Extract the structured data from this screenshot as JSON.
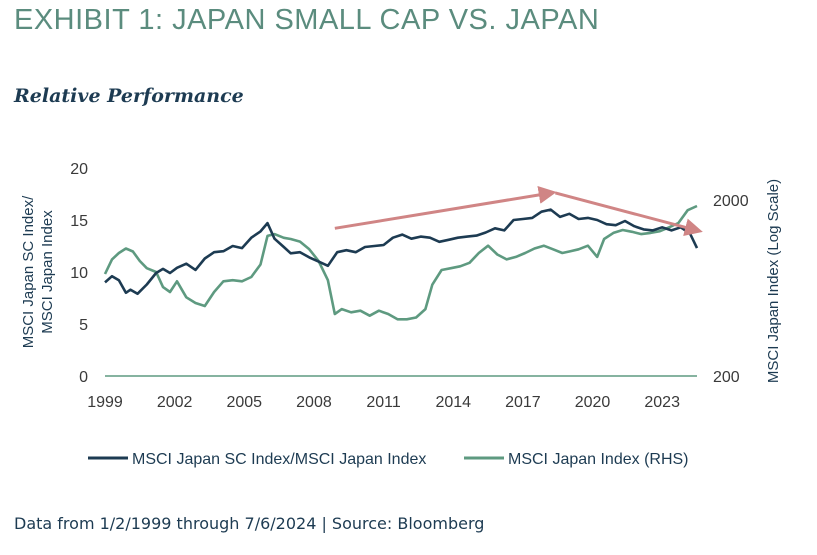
{
  "header": {
    "title": "EXHIBIT 1: JAPAN SMALL CAP VS. JAPAN",
    "subtitle": "Relative Performance"
  },
  "footer": {
    "note": "Data from 1/2/1999 through 7/6/2024 | Source: Bloomberg"
  },
  "colors": {
    "title": "#5b8c7e",
    "series_ratio": "#1d3b52",
    "series_index": "#5e9a80",
    "arrow": "#d08585",
    "axis": "#5e9a80"
  },
  "chart_data": {
    "type": "line",
    "ylabel_left": "MSCI Japan SC Index/ MSCI Japan Index",
    "ylabel_right": "MSCI Japan Index (Log Scale)",
    "ylim_left": [
      0,
      20
    ],
    "yticks_left": [
      "0",
      "5",
      "10",
      "15",
      "20"
    ],
    "yticks_right": [
      "200",
      "2000"
    ],
    "xlim": [
      1999,
      2024.5
    ],
    "xticks": [
      "1999",
      "2002",
      "2005",
      "2008",
      "2011",
      "2014",
      "2017",
      "2020",
      "2023"
    ],
    "legend_position": "bottom",
    "series": [
      {
        "name": "MSCI Japan SC Index/MSCI Japan Index",
        "axis": "left",
        "x": [
          1999,
          1999.3,
          1999.6,
          1999.9,
          2000.1,
          2000.4,
          2000.8,
          2001.2,
          2001.5,
          2001.8,
          2002.1,
          2002.5,
          2002.9,
          2003.3,
          2003.7,
          2004.1,
          2004.5,
          2004.9,
          2005.3,
          2005.7,
          2006.0,
          2006.3,
          2006.7,
          2007.0,
          2007.4,
          2007.8,
          2008.2,
          2008.6,
          2009.0,
          2009.4,
          2009.8,
          2010.2,
          2010.6,
          2011.0,
          2011.4,
          2011.8,
          2012.2,
          2012.6,
          2013.0,
          2013.4,
          2013.8,
          2014.2,
          2014.6,
          2015.0,
          2015.4,
          2015.8,
          2016.2,
          2016.6,
          2017.0,
          2017.4,
          2017.8,
          2018.2,
          2018.6,
          2019.0,
          2019.4,
          2019.8,
          2020.2,
          2020.6,
          2021.0,
          2021.4,
          2021.8,
          2022.2,
          2022.6,
          2023.0,
          2023.4,
          2023.8,
          2024.2,
          2024.5
        ],
        "y": [
          9.0,
          9.6,
          9.2,
          8.0,
          8.3,
          7.9,
          8.8,
          9.9,
          10.3,
          9.9,
          10.4,
          10.8,
          10.2,
          11.3,
          11.9,
          12.0,
          12.5,
          12.3,
          13.3,
          13.9,
          14.7,
          13.2,
          12.4,
          11.8,
          11.9,
          11.4,
          11.0,
          10.6,
          11.9,
          12.1,
          11.9,
          12.4,
          12.5,
          12.6,
          13.3,
          13.6,
          13.2,
          13.4,
          13.3,
          12.9,
          13.1,
          13.3,
          13.4,
          13.5,
          13.8,
          14.2,
          14.0,
          15.0,
          15.1,
          15.2,
          15.8,
          16.0,
          15.3,
          15.6,
          15.1,
          15.2,
          15.0,
          14.6,
          14.5,
          14.9,
          14.4,
          14.1,
          14.0,
          14.3,
          14.0,
          14.3,
          13.7,
          12.3
        ]
      },
      {
        "name": "MSCI Japan Index (RHS)",
        "axis": "right",
        "x": [
          1999,
          1999.3,
          1999.6,
          1999.9,
          2000.2,
          2000.5,
          2000.8,
          2001.2,
          2001.5,
          2001.8,
          2002.1,
          2002.5,
          2002.9,
          2003.3,
          2003.7,
          2004.1,
          2004.5,
          2004.9,
          2005.3,
          2005.7,
          2006.0,
          2006.3,
          2006.7,
          2007.0,
          2007.4,
          2007.8,
          2008.2,
          2008.6,
          2008.9,
          2009.2,
          2009.6,
          2010.0,
          2010.4,
          2010.8,
          2011.2,
          2011.6,
          2012.0,
          2012.4,
          2012.8,
          2013.1,
          2013.5,
          2013.9,
          2014.3,
          2014.7,
          2015.1,
          2015.5,
          2015.9,
          2016.3,
          2016.7,
          2017.1,
          2017.5,
          2017.9,
          2018.3,
          2018.7,
          2019.0,
          2019.4,
          2019.8,
          2020.2,
          2020.5,
          2020.9,
          2021.3,
          2021.7,
          2022.1,
          2022.5,
          2022.9,
          2023.3,
          2023.7,
          2024.1,
          2024.5
        ],
        "y": [
          760,
          920,
          1000,
          1060,
          1020,
          900,
          820,
          780,
          640,
          600,
          690,
          560,
          520,
          500,
          600,
          690,
          700,
          690,
          730,
          860,
          1250,
          1280,
          1220,
          1200,
          1160,
          1050,
          900,
          700,
          450,
          480,
          460,
          470,
          440,
          470,
          450,
          420,
          420,
          430,
          480,
          660,
          800,
          820,
          840,
          880,
          1000,
          1100,
          980,
          920,
          950,
          1000,
          1060,
          1100,
          1050,
          1000,
          1020,
          1050,
          1100,
          950,
          1200,
          1300,
          1350,
          1320,
          1280,
          1300,
          1330,
          1400,
          1480,
          1750,
          1850
        ]
      }
    ],
    "annotations": [
      {
        "type": "arrow",
        "from": {
          "x": 2008.9,
          "y": 14.2
        },
        "to": {
          "x": 2018.2,
          "y": 17.6
        }
      },
      {
        "type": "arrow",
        "from": {
          "x": 2018.4,
          "y": 17.6
        },
        "to": {
          "x": 2024.5,
          "y": 14.0
        }
      }
    ]
  }
}
